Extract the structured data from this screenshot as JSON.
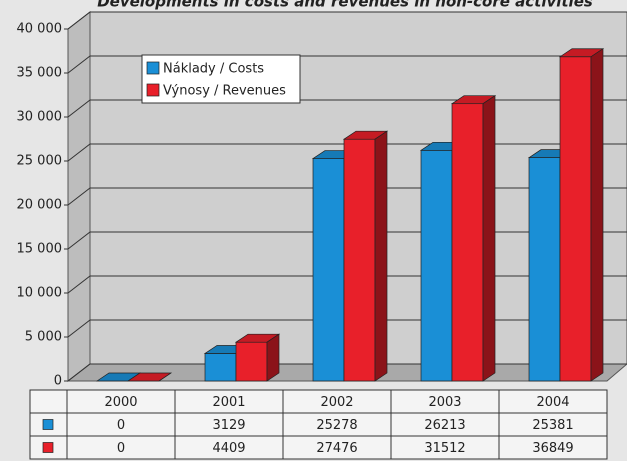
{
  "chart_data": {
    "type": "bar",
    "title": "Developments in costs and revenues in non-core activities",
    "categories": [
      "2000",
      "2001",
      "2002",
      "2003",
      "2004"
    ],
    "series": [
      {
        "name": "Náklady / Costs",
        "color": "#1a8fd6",
        "values": [
          0,
          3129,
          25278,
          26213,
          25381
        ]
      },
      {
        "name": "Výnosy / Revenues",
        "color": "#e8202a",
        "values": [
          0,
          4409,
          27476,
          31512,
          36849
        ]
      }
    ],
    "ylim": [
      0,
      40000
    ],
    "yticks": [
      0,
      {
        "value": 5000,
        "label": "5 000"
      },
      {
        "value": 10000,
        "label": "10 000"
      },
      {
        "value": 15000,
        "label": "15 000"
      },
      {
        "value": 20000,
        "label": "20 000"
      },
      {
        "value": 25000,
        "label": "25 000"
      },
      {
        "value": 30000,
        "label": "30 000"
      },
      {
        "value": 35000,
        "label": "35 000"
      },
      {
        "value": 40000,
        "label": "40 000"
      }
    ],
    "grid": true,
    "legend": "top-left"
  }
}
